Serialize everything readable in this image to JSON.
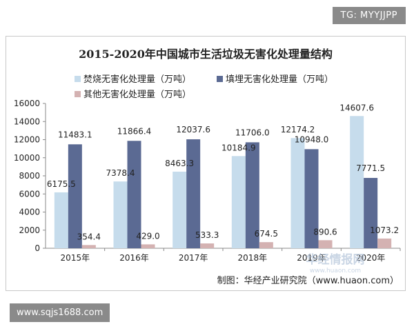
{
  "tg_badge": "TG: MYYJJPP",
  "url_badge": "www.sqjs1688.com",
  "source_note": "制图：华经产业研究院（www.huaon.com）",
  "watermark": "华经情报网",
  "watermark_url": "www.huaon.com",
  "colors": {
    "series1": "#c6dcec",
    "series2": "#5b6a93",
    "series3": "#d4b2b2",
    "axis": "#888888",
    "text": "#222222",
    "frame": "#c8c8c8"
  },
  "chart_data": {
    "type": "bar",
    "title": "2015-2020年中国城市生活垃圾无害化处理量结构",
    "categories": [
      "2015年",
      "2016年",
      "2017年",
      "2018年",
      "2019年",
      "2020年"
    ],
    "series": [
      {
        "name": "焚烧无害化处理量（万吨）",
        "values": [
          6175.5,
          7378.4,
          8463.3,
          10184.9,
          12174.2,
          14607.6
        ],
        "labels": [
          "6175.5",
          "7378.4",
          "8463.3",
          "10184.9",
          "12174.2",
          "14607.6"
        ]
      },
      {
        "name": "填埋无害化处理量（万吨）",
        "values": [
          11483.1,
          11866.4,
          12037.6,
          11706.0,
          10948.0,
          7771.5
        ],
        "labels": [
          "11483.1",
          "11866.4",
          "12037.6",
          "11706.0",
          "10948.0",
          "7771.5"
        ]
      },
      {
        "name": "其他无害化处理量（万吨）",
        "values": [
          354.4,
          429.0,
          533.3,
          674.5,
          890.6,
          1073.2
        ],
        "labels": [
          "354.4",
          "429.0",
          "533.3",
          "674.5",
          "890.6",
          "1073.2"
        ]
      }
    ],
    "yticks": [
      "0",
      "2000",
      "4000",
      "6000",
      "8000",
      "10000",
      "12000",
      "14000",
      "16000"
    ],
    "ylim": [
      0,
      16000
    ],
    "grid": false,
    "legend_position": "top-left"
  }
}
